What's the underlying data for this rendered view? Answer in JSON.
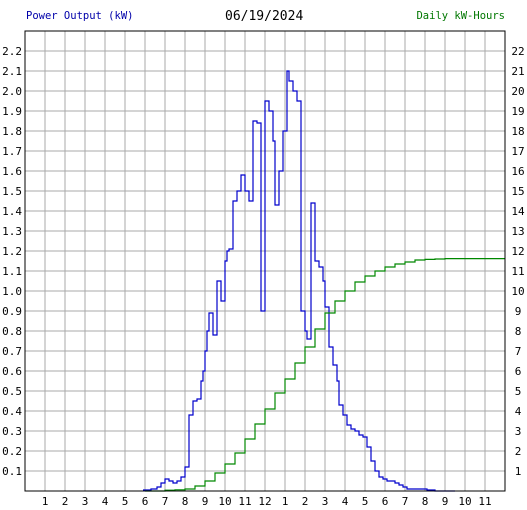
{
  "header": {
    "left_label": "Power Output (kW)",
    "title": "06/19/2024",
    "right_label": "Daily kW-Hours"
  },
  "colors": {
    "power": "#0000cc",
    "energy": "#008800",
    "grid": "#a8a8a8",
    "background": "#ffffff"
  },
  "chart_data": {
    "type": "line",
    "title": "06/19/2024",
    "x_tick_labels": [
      "1",
      "2",
      "3",
      "4",
      "5",
      "6",
      "7",
      "8",
      "9",
      "10",
      "11",
      "12",
      "1",
      "2",
      "3",
      "4",
      "5",
      "6",
      "7",
      "8",
      "9",
      "10",
      "11"
    ],
    "x_unit": "hour of day (0-24)",
    "xlim": [
      0,
      24
    ],
    "left_axis": {
      "label": "Power Output (kW)",
      "ylim": [
        0,
        2.3
      ],
      "tick_labels": [
        "0.1",
        "0.2",
        "0.3",
        "0.4",
        "0.5",
        "0.6",
        "0.7",
        "0.8",
        "0.9",
        "1.0",
        "1.1",
        "1.2",
        "1.3",
        "1.4",
        "1.5",
        "1.6",
        "1.7",
        "1.8",
        "1.9",
        "2.0",
        "2.1",
        "2.2"
      ]
    },
    "right_axis": {
      "label": "Daily kW-Hours",
      "ylim": [
        0,
        23
      ],
      "tick_labels": [
        "1",
        "2",
        "3",
        "4",
        "5",
        "6",
        "7",
        "8",
        "9",
        "10",
        "11",
        "12",
        "13",
        "14",
        "15",
        "16",
        "17",
        "18",
        "19",
        "20",
        "21",
        "22"
      ]
    },
    "grid": true,
    "series": [
      {
        "name": "Power Output (kW)",
        "axis": "left",
        "step": true,
        "x": [
          5.9,
          6.3,
          6.6,
          6.8,
          7.0,
          7.2,
          7.4,
          7.6,
          7.8,
          8.0,
          8.2,
          8.4,
          8.6,
          8.8,
          8.9,
          9.0,
          9.1,
          9.2,
          9.4,
          9.6,
          9.8,
          10.0,
          10.1,
          10.2,
          10.4,
          10.6,
          10.8,
          11.0,
          11.2,
          11.4,
          11.6,
          11.8,
          12.0,
          12.2,
          12.4,
          12.5,
          12.7,
          12.9,
          13.1,
          13.2,
          13.4,
          13.6,
          13.8,
          14.0,
          14.1,
          14.3,
          14.5,
          14.7,
          14.9,
          15.0,
          15.2,
          15.4,
          15.6,
          15.7,
          15.9,
          16.1,
          16.3,
          16.5,
          16.7,
          16.9,
          17.1,
          17.3,
          17.5,
          17.7,
          17.9,
          18.1,
          18.3,
          18.5,
          18.7,
          18.9,
          19.1,
          19.3,
          19.5,
          19.7,
          19.9,
          20.1,
          20.3,
          20.5,
          20.7,
          20.9,
          21.2,
          21.5
        ],
        "values": [
          0.005,
          0.01,
          0.02,
          0.04,
          0.06,
          0.05,
          0.04,
          0.05,
          0.07,
          0.12,
          0.38,
          0.45,
          0.46,
          0.55,
          0.6,
          0.7,
          0.8,
          0.89,
          0.78,
          1.05,
          0.95,
          1.15,
          1.2,
          1.21,
          1.45,
          1.5,
          1.58,
          1.5,
          1.45,
          1.85,
          1.84,
          0.9,
          1.95,
          1.9,
          1.75,
          1.43,
          1.6,
          1.8,
          2.1,
          2.05,
          2.0,
          1.95,
          0.9,
          0.8,
          0.76,
          1.44,
          1.15,
          1.12,
          1.05,
          0.92,
          0.72,
          0.63,
          0.55,
          0.43,
          0.38,
          0.33,
          0.31,
          0.3,
          0.28,
          0.27,
          0.22,
          0.15,
          0.1,
          0.07,
          0.06,
          0.05,
          0.05,
          0.04,
          0.03,
          0.02,
          0.01,
          0.01,
          0.01,
          0.01,
          0.01,
          0.005,
          0.005,
          0.0,
          0.0,
          0.0,
          0.0,
          0.0
        ]
      },
      {
        "name": "Daily kW-Hours",
        "axis": "right",
        "step": true,
        "x": [
          6.0,
          7.0,
          7.5,
          8.0,
          8.5,
          9.0,
          9.5,
          10.0,
          10.5,
          11.0,
          11.5,
          12.0,
          12.5,
          13.0,
          13.5,
          14.0,
          14.5,
          15.0,
          15.5,
          16.0,
          16.5,
          17.0,
          17.5,
          18.0,
          18.5,
          19.0,
          19.5,
          20.0,
          20.5,
          21.0,
          22.0,
          23.0,
          24.0
        ],
        "values": [
          0.0,
          0.04,
          0.06,
          0.1,
          0.25,
          0.5,
          0.9,
          1.35,
          1.9,
          2.6,
          3.35,
          4.1,
          4.9,
          5.6,
          6.4,
          7.2,
          8.1,
          8.9,
          9.5,
          10.0,
          10.45,
          10.75,
          11.0,
          11.2,
          11.35,
          11.45,
          11.55,
          11.58,
          11.6,
          11.62,
          11.62,
          11.62,
          11.62
        ]
      }
    ]
  }
}
